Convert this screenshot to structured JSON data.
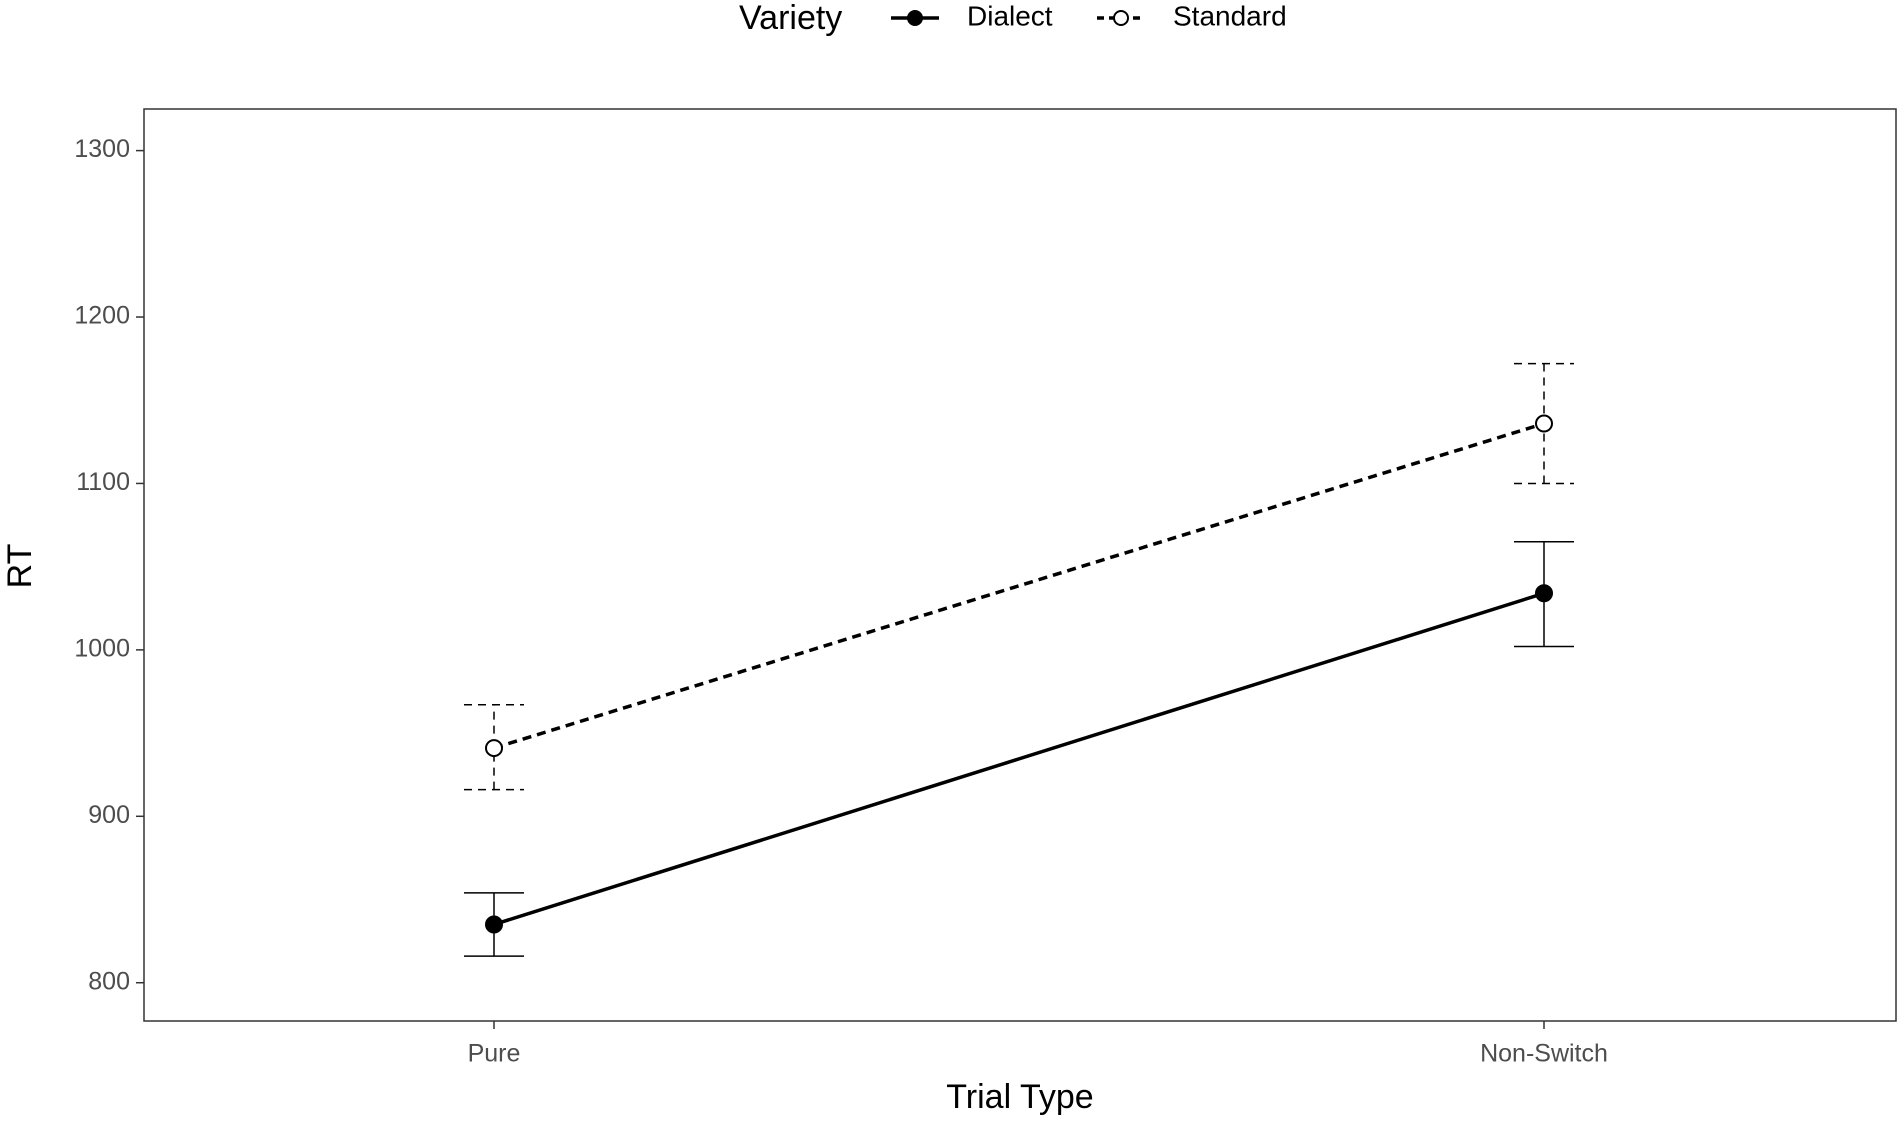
{
  "chart_data": {
    "type": "line",
    "x_label": "Trial Type",
    "y_label": "RT",
    "legend_title": "Variety",
    "legend_position": "top",
    "categories": [
      "Pure",
      "Non-Switch"
    ],
    "series": [
      {
        "name": "Dialect",
        "color": "#000000",
        "line_style": "solid",
        "marker_fill": "filled",
        "values": [
          835,
          1034
        ],
        "lower": [
          816,
          1002
        ],
        "upper": [
          854,
          1065
        ]
      },
      {
        "name": "Standard",
        "color": "#000000",
        "line_style": "dashed",
        "marker_fill": "open",
        "values": [
          941,
          1136
        ],
        "lower": [
          916,
          1100
        ],
        "upper": [
          967,
          1172
        ]
      }
    ],
    "ylim": [
      777,
      1325
    ],
    "yticks": [
      800,
      900,
      1000,
      1100,
      1200,
      1300
    ],
    "grid": false
  }
}
